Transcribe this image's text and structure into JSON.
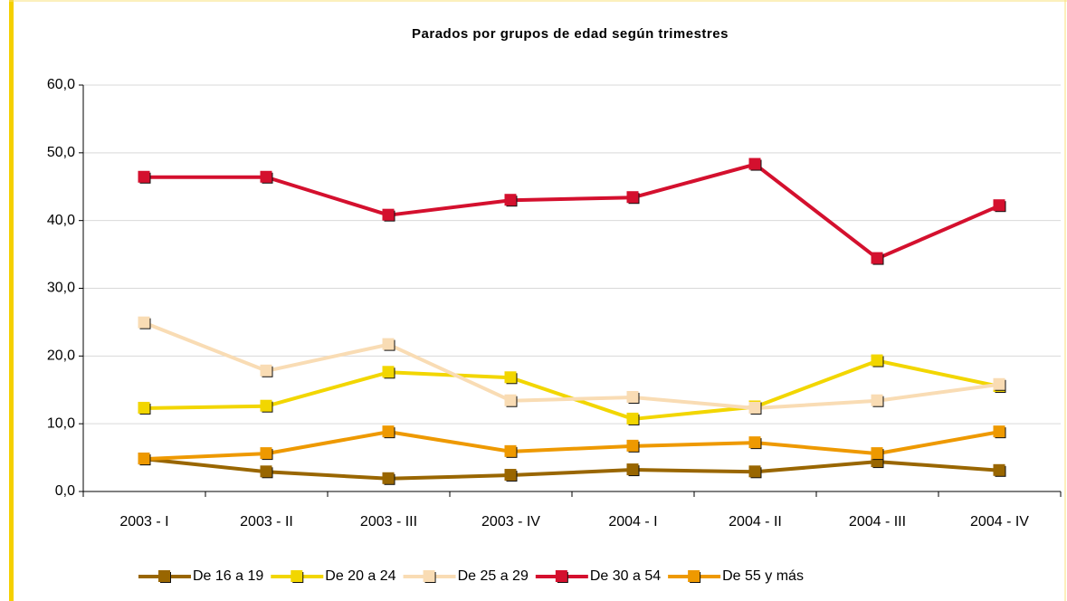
{
  "chart_data": {
    "type": "line",
    "title": "Parados por grupos de edad según trimestres",
    "categories": [
      "2003 - I",
      "2003 - II",
      "2003 - III",
      "2003 - IV",
      "2004 - I",
      "2004 - II",
      "2004 - III",
      "2004 - IV"
    ],
    "series": [
      {
        "name": "De 16 a 19",
        "color": "#996600",
        "values": [
          4.8,
          2.9,
          1.9,
          2.4,
          3.2,
          2.9,
          4.4,
          3.1
        ]
      },
      {
        "name": "De 20 a 24",
        "color": "#f2d600",
        "values": [
          12.3,
          12.6,
          17.6,
          16.8,
          10.7,
          12.5,
          19.3,
          15.5
        ]
      },
      {
        "name": "De 25 a 29",
        "color": "#f9dcb4",
        "values": [
          24.9,
          17.8,
          21.7,
          13.4,
          13.9,
          12.3,
          13.4,
          15.8
        ]
      },
      {
        "name": "De 30 a 54",
        "color": "#d4102e",
        "values": [
          46.4,
          46.4,
          40.8,
          43.0,
          43.4,
          48.3,
          34.4,
          42.2
        ]
      },
      {
        "name": "De 55 y más",
        "color": "#ee9900",
        "values": [
          4.8,
          5.6,
          8.8,
          5.9,
          6.7,
          7.2,
          5.6,
          8.8
        ]
      }
    ],
    "ylim": [
      0,
      60
    ],
    "yticks": [
      {
        "value": 0,
        "label": "0,0"
      },
      {
        "value": 10,
        "label": "10,0"
      },
      {
        "value": 20,
        "label": "20,0"
      },
      {
        "value": 30,
        "label": "30,0"
      },
      {
        "value": 40,
        "label": "40,0"
      },
      {
        "value": 50,
        "label": "50,0"
      },
      {
        "value": 60,
        "label": "60,0"
      }
    ],
    "grid": true,
    "legend": "bottom"
  }
}
